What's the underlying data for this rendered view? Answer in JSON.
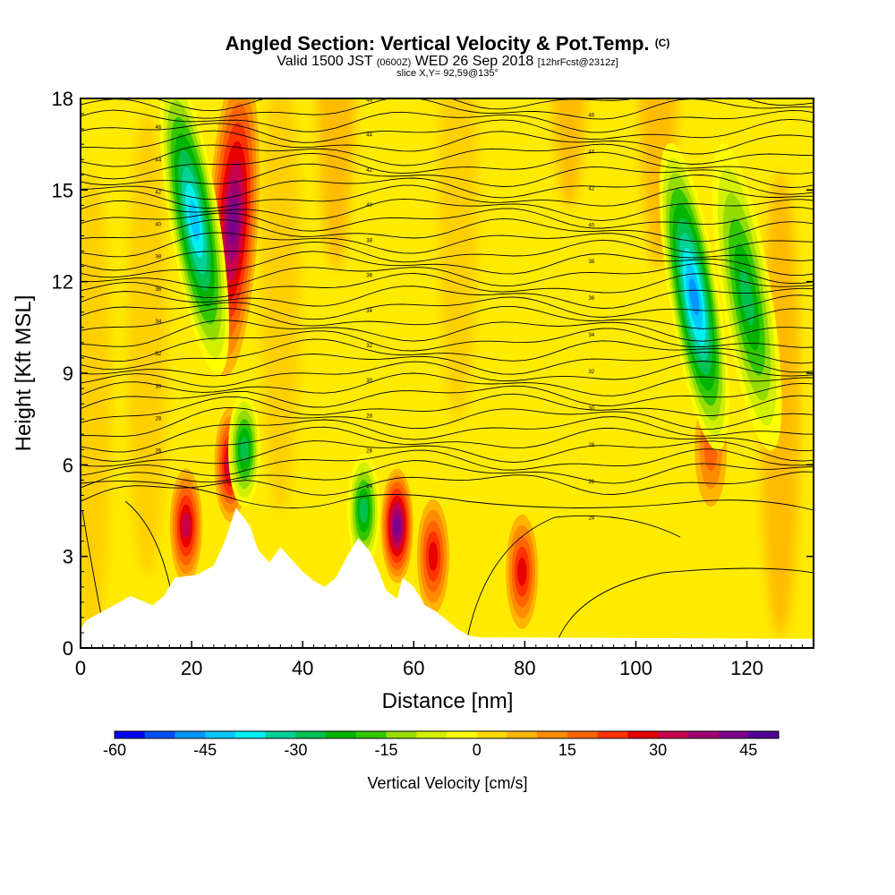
{
  "header": {
    "title": "Angled Section: Vertical Velocity & Pot.Temp.",
    "title_units": "(C)",
    "valid_prefix": "Valid 1500 JST",
    "valid_utc": "(0600Z)",
    "valid_date": "WED 26 Sep 2018",
    "forecast": "[12hrFcst@2312z]",
    "slice": "slice X,Y= 92,59@135°"
  },
  "chart_data": {
    "type": "heatmap",
    "xlabel": "Distance [nm]",
    "ylabel": "Height [Kft MSL]",
    "xlim": [
      0,
      132
    ],
    "ylim": [
      0,
      18
    ],
    "x_ticks": [
      0,
      20,
      40,
      60,
      80,
      100,
      120
    ],
    "y_ticks": [
      0,
      3,
      6,
      9,
      12,
      15,
      18
    ],
    "colorbar": {
      "label": "Vertical Velocity [cm/s]",
      "min": -60,
      "max": 50,
      "step": 5,
      "tick_values": [
        -60,
        -45,
        -30,
        -15,
        0,
        15,
        30,
        45
      ],
      "tick_labels": [
        "-60",
        "-45",
        "-30",
        "-15",
        "0",
        "15",
        "30",
        "45"
      ],
      "colors": [
        "#0000ff",
        "#0050ff",
        "#0096ff",
        "#00c8ff",
        "#00f0f0",
        "#00d296",
        "#00c050",
        "#00b400",
        "#32c800",
        "#96dc00",
        "#d2f000",
        "#ffff00",
        "#ffdc00",
        "#ffb400",
        "#ff8c00",
        "#ff6400",
        "#ff3200",
        "#e60000",
        "#c8004b",
        "#a0006e",
        "#7d008c",
        "#500096"
      ]
    },
    "updrafts": [
      {
        "x": 27.5,
        "z": 14.0,
        "peak_cm_s": 40
      },
      {
        "x": 19.0,
        "z": 4.0,
        "peak_cm_s": 30
      },
      {
        "x": 27.0,
        "z": 6.0,
        "peak_cm_s": 30
      },
      {
        "x": 57.0,
        "z": 4.0,
        "peak_cm_s": 40
      },
      {
        "x": 63.5,
        "z": 3.0,
        "peak_cm_s": 25
      },
      {
        "x": 79.5,
        "z": 2.5,
        "peak_cm_s": 25
      },
      {
        "x": 113.5,
        "z": 6.5,
        "peak_cm_s": 15
      }
    ],
    "downdrafts": [
      {
        "x": 20.5,
        "z": 14.0,
        "peak_cm_s": -45
      },
      {
        "x": 110.5,
        "z": 11.5,
        "peak_cm_s": -50
      },
      {
        "x": 120.0,
        "z": 11.5,
        "peak_cm_s": -30
      },
      {
        "x": 29.5,
        "z": 6.5,
        "peak_cm_s": -30
      },
      {
        "x": 51.0,
        "z": 4.5,
        "peak_cm_s": -30
      }
    ],
    "isentropes": {
      "label_values": [
        "46",
        "44",
        "42",
        "40",
        "38",
        "36",
        "34",
        "32",
        "30",
        "28",
        "26",
        "24"
      ],
      "labels_left": [
        "46",
        "44",
        "42",
        "40",
        "38",
        "36",
        "34",
        "32",
        "30",
        "28",
        "26"
      ],
      "labels_center": [
        "46",
        "44",
        "42",
        "40",
        "38",
        "36",
        "34",
        "32",
        "30",
        "28",
        "26",
        "24"
      ],
      "labels_right": [
        "46",
        "44",
        "42",
        "40",
        "38",
        "36",
        "34",
        "32",
        "30",
        "28",
        "26",
        "24"
      ]
    },
    "terrain": [
      {
        "x": 0,
        "z": 0.6
      },
      {
        "x": 1,
        "z": 0.9
      },
      {
        "x": 4,
        "z": 1.2
      },
      {
        "x": 6,
        "z": 1.4
      },
      {
        "x": 9,
        "z": 1.7
      },
      {
        "x": 13,
        "z": 1.4
      },
      {
        "x": 15,
        "z": 1.7
      },
      {
        "x": 17,
        "z": 2.3
      },
      {
        "x": 21,
        "z": 2.4
      },
      {
        "x": 24,
        "z": 2.7
      },
      {
        "x": 26,
        "z": 3.5
      },
      {
        "x": 28,
        "z": 4.6
      },
      {
        "x": 30.5,
        "z": 4.0
      },
      {
        "x": 32,
        "z": 3.2
      },
      {
        "x": 34,
        "z": 2.8
      },
      {
        "x": 36,
        "z": 3.3
      },
      {
        "x": 38,
        "z": 2.9
      },
      {
        "x": 40,
        "z": 2.5
      },
      {
        "x": 42,
        "z": 2.2
      },
      {
        "x": 44,
        "z": 2.0
      },
      {
        "x": 46,
        "z": 2.3
      },
      {
        "x": 48,
        "z": 3.0
      },
      {
        "x": 50,
        "z": 3.6
      },
      {
        "x": 52,
        "z": 3.2
      },
      {
        "x": 53.5,
        "z": 2.6
      },
      {
        "x": 55,
        "z": 1.9
      },
      {
        "x": 57,
        "z": 1.6
      },
      {
        "x": 58,
        "z": 2.3
      },
      {
        "x": 60,
        "z": 2.0
      },
      {
        "x": 62,
        "z": 1.4
      },
      {
        "x": 64,
        "z": 1.2
      },
      {
        "x": 66,
        "z": 0.9
      },
      {
        "x": 68,
        "z": 0.6
      },
      {
        "x": 70,
        "z": 0.4
      },
      {
        "x": 72,
        "z": 0.35
      },
      {
        "x": 132,
        "z": 0.3
      }
    ]
  }
}
